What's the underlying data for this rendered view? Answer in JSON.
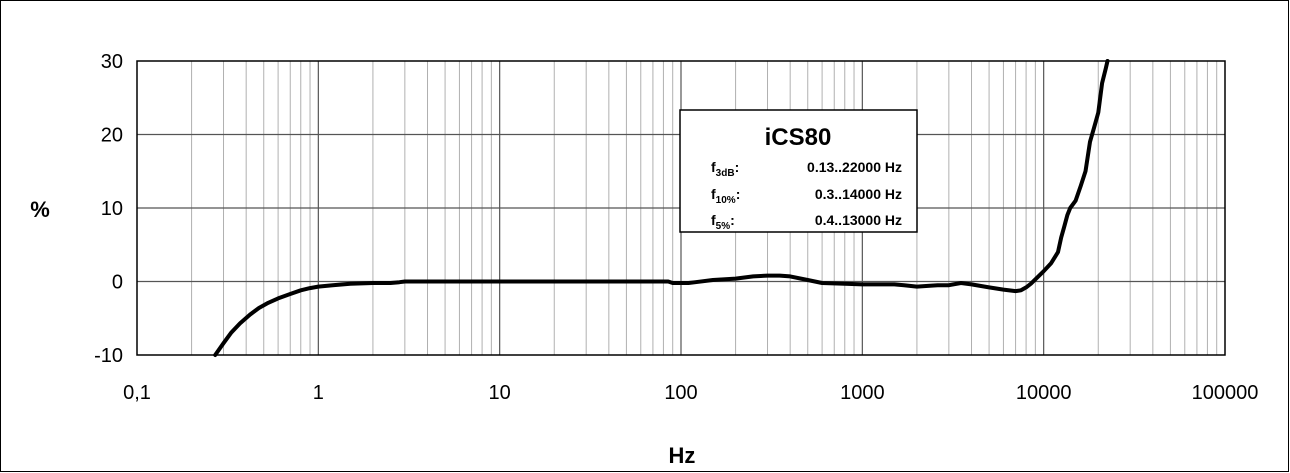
{
  "chart_data": {
    "type": "line",
    "title": "",
    "xlabel": "Hz",
    "ylabel": "%",
    "x_scale": "log",
    "xlim": [
      0.1,
      100000
    ],
    "ylim": [
      -10,
      30
    ],
    "x_ticks": [
      "0,1",
      "1",
      "10",
      "100",
      "1000",
      "10000",
      "100000"
    ],
    "y_ticks": [
      "-10",
      "0",
      "10",
      "20",
      "30"
    ],
    "grid": true,
    "line_color": "#000000",
    "legend": {
      "placement": "top-center",
      "title": "iCS80",
      "rows": [
        {
          "symbol": "f",
          "subscript": "3dB",
          "value": "0.13..22000 Hz"
        },
        {
          "symbol": "f",
          "subscript": "10%",
          "value": "0.3..14000 Hz"
        },
        {
          "symbol": "f",
          "subscript": "5%",
          "value": "0.4..13000 Hz"
        }
      ]
    },
    "series": [
      {
        "x": [
          0.27,
          0.3,
          0.33,
          0.37,
          0.42,
          0.47,
          0.53,
          0.6,
          0.7,
          0.8,
          0.9,
          1,
          1.2,
          1.5,
          2,
          2.5,
          2.8,
          3,
          4,
          5,
          7,
          10,
          15,
          20,
          30,
          50,
          70,
          85,
          90,
          100,
          110,
          120,
          150,
          200,
          250,
          300,
          350,
          400,
          500,
          600,
          800,
          1000,
          1200,
          1500,
          1700,
          2000,
          2300,
          2600,
          3000,
          3500,
          4000,
          5000,
          6000,
          7000,
          7500,
          8000,
          8500,
          9000,
          10000,
          11000,
          12000,
          12500,
          13000,
          13500,
          14000,
          15000,
          16000,
          17000,
          18000,
          19000,
          20000,
          21000,
          22000,
          22500
        ],
        "y": [
          -10,
          -8.4,
          -7,
          -5.7,
          -4.5,
          -3.6,
          -2.9,
          -2.3,
          -1.7,
          -1.2,
          -0.9,
          -0.7,
          -0.5,
          -0.3,
          -0.2,
          -0.2,
          -0.1,
          0,
          0,
          0,
          0,
          0,
          0,
          0,
          0,
          0,
          0,
          0,
          -0.2,
          -0.2,
          -0.2,
          -0.1,
          0.2,
          0.4,
          0.7,
          0.8,
          0.8,
          0.7,
          0.2,
          -0.2,
          -0.3,
          -0.4,
          -0.4,
          -0.4,
          -0.5,
          -0.7,
          -0.6,
          -0.5,
          -0.5,
          -0.2,
          -0.4,
          -0.8,
          -1.1,
          -1.3,
          -1.2,
          -0.8,
          -0.3,
          0.3,
          1.4,
          2.5,
          4,
          6,
          7.5,
          9,
          10,
          11,
          13,
          15,
          19,
          21,
          23,
          27,
          29,
          30
        ]
      }
    ]
  }
}
